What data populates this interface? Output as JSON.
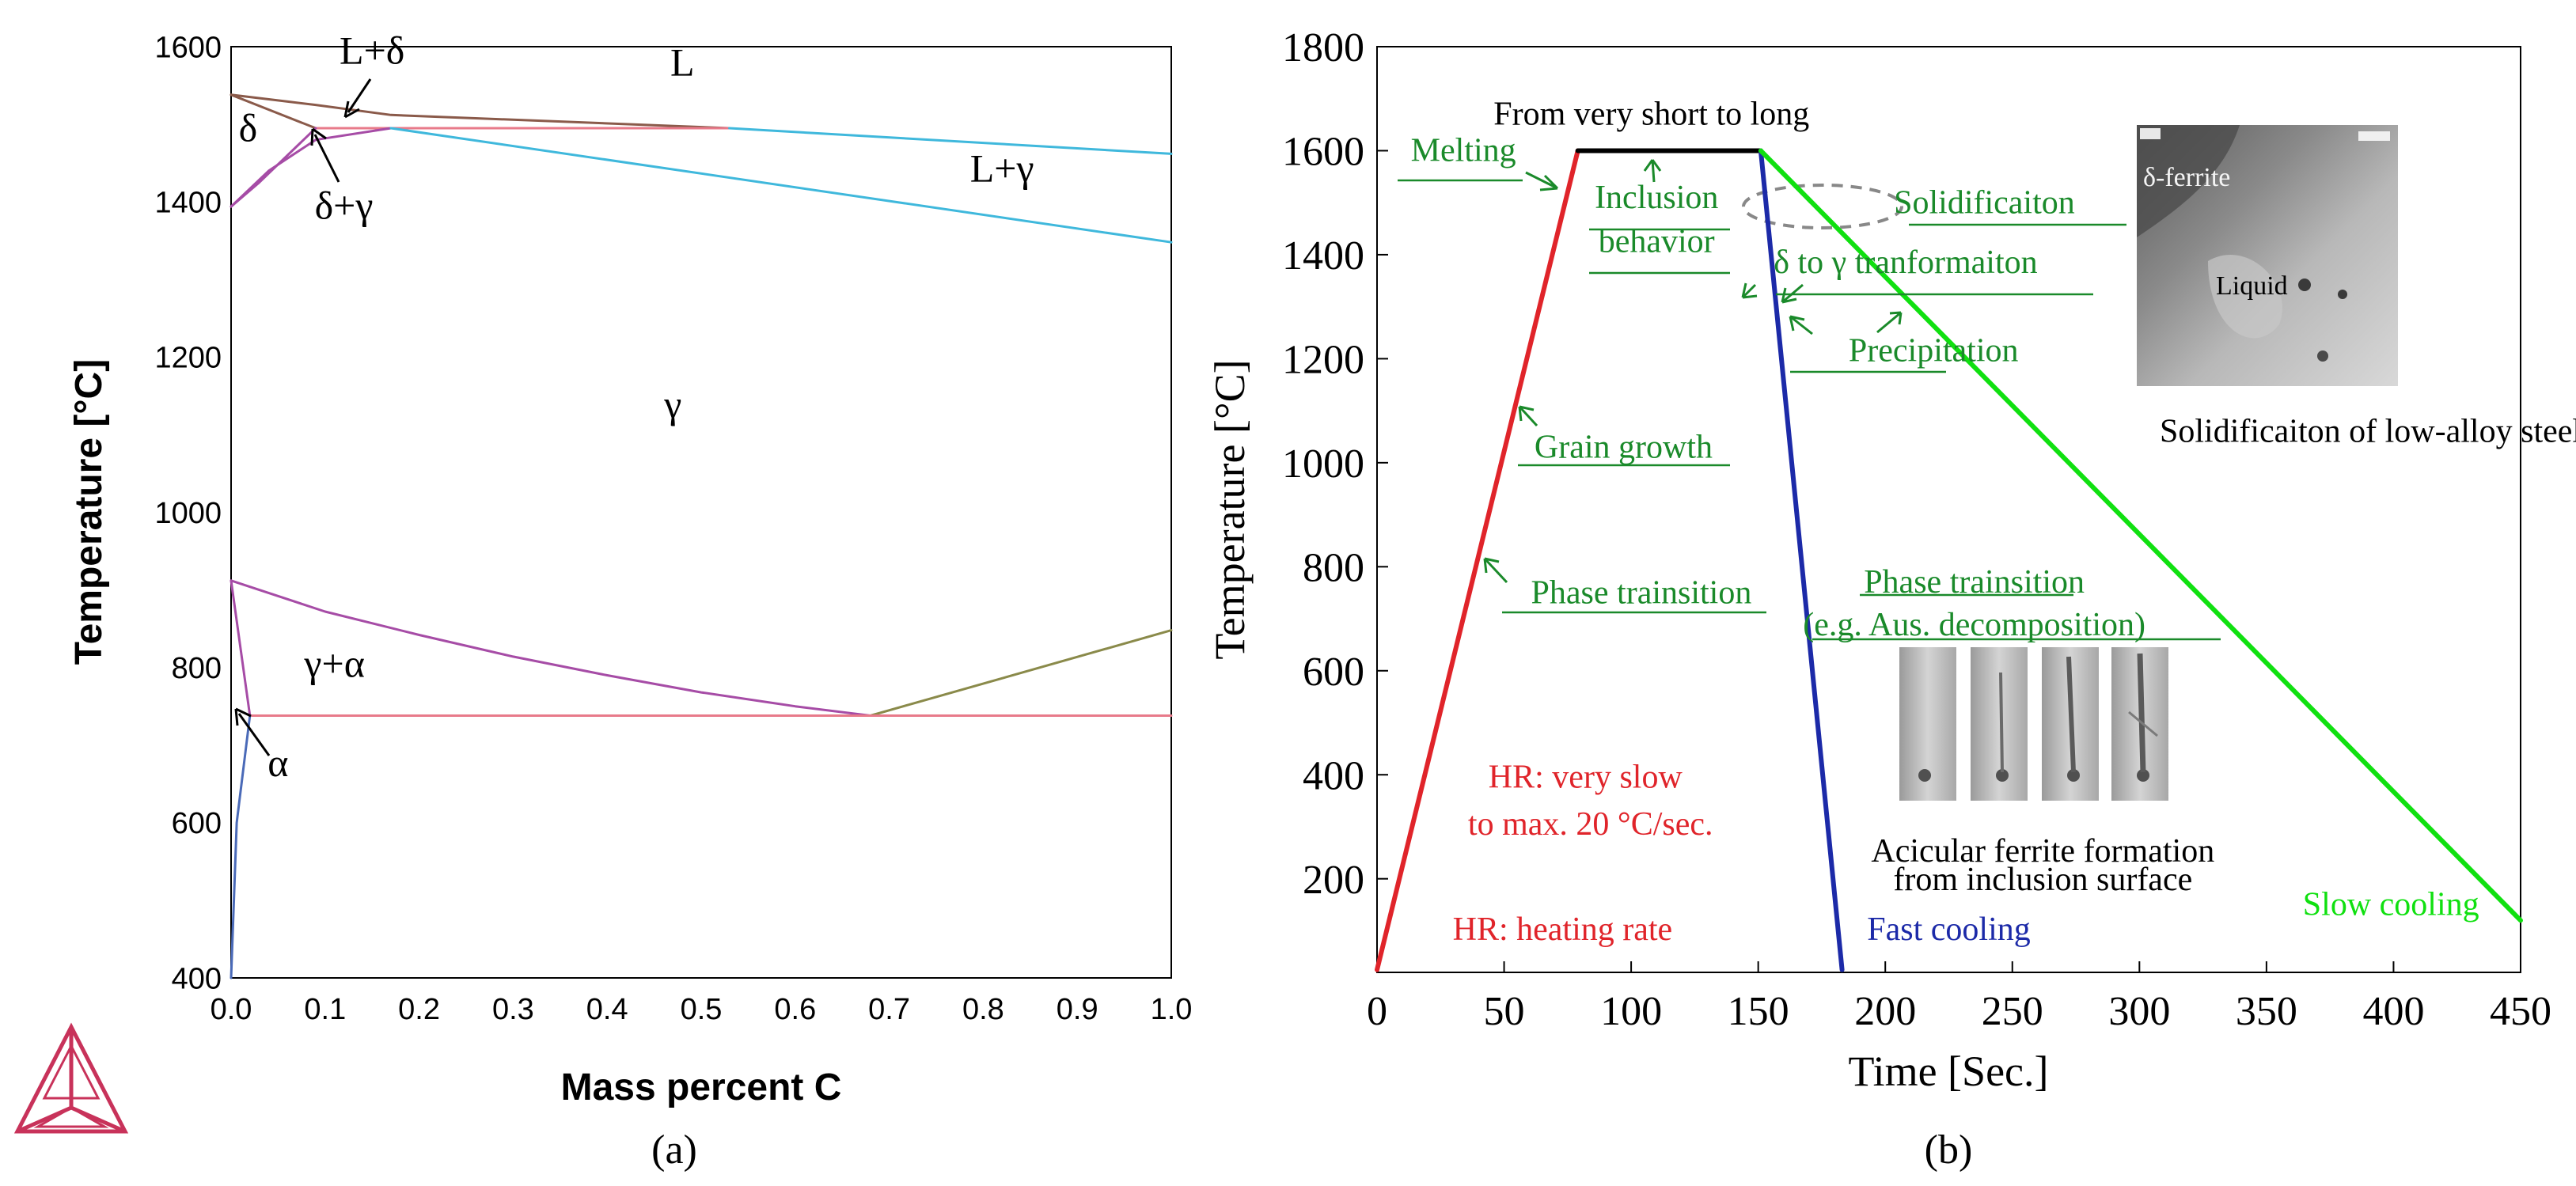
{
  "chart_data": [
    {
      "type": "line",
      "panel_label": "(a)",
      "title": "",
      "xlabel": "Mass percent C",
      "ylabel": "Temperature [°C]",
      "xlim": [
        0,
        1
      ],
      "ylim": [
        400,
        1600
      ],
      "x_ticks": [
        0,
        0.1,
        0.2,
        0.3,
        0.4,
        0.5,
        0.6,
        0.7,
        0.8,
        0.9,
        1
      ],
      "x_tick_labels": [
        "0.0",
        "0.1",
        "0.2",
        "0.3",
        "0.4",
        "0.5",
        "0.6",
        "0.7",
        "0.8",
        "0.9",
        "1.0"
      ],
      "y_ticks": [
        400,
        600,
        800,
        1000,
        1200,
        1400,
        1600
      ],
      "y_tick_labels": [
        "400",
        "600",
        "800",
        "1000",
        "1200",
        "1400",
        "1600"
      ],
      "series": [
        {
          "name": "liquidus-delta",
          "color": "#8a5a4a",
          "points": [
            [
              0,
              1538
            ],
            [
              0.09,
              1525
            ],
            [
              0.17,
              1512
            ],
            [
              0.53,
              1495
            ]
          ]
        },
        {
          "name": "solidus-delta",
          "color": "#8a5a4a",
          "points": [
            [
              0,
              1538
            ],
            [
              0.09,
              1495
            ]
          ]
        },
        {
          "name": "peritectic-line",
          "color": "#e87a8a",
          "points": [
            [
              0.09,
              1495
            ],
            [
              0.53,
              1495
            ]
          ]
        },
        {
          "name": "delta-gamma-upper",
          "color": "#a64ca6",
          "points": [
            [
              0,
              1394
            ],
            [
              0.04,
              1440
            ],
            [
              0.09,
              1480
            ],
            [
              0.17,
              1495
            ]
          ]
        },
        {
          "name": "delta-gamma-lower",
          "color": "#a64ca6",
          "points": [
            [
              0,
              1394
            ],
            [
              0.03,
              1425
            ],
            [
              0.09,
              1495
            ]
          ]
        },
        {
          "name": "liquidus-gamma",
          "color": "#3fb8dc",
          "points": [
            [
              0.53,
              1495
            ],
            [
              1.0,
              1462
            ]
          ]
        },
        {
          "name": "solidus-gamma",
          "color": "#3fb8dc",
          "points": [
            [
              0.17,
              1495
            ],
            [
              1.0,
              1348
            ]
          ]
        },
        {
          "name": "a3-line",
          "color": "#a64ca6",
          "points": [
            [
              0,
              912
            ],
            [
              0.1,
              872
            ],
            [
              0.2,
              842
            ],
            [
              0.3,
              814
            ],
            [
              0.4,
              790
            ],
            [
              0.5,
              768
            ],
            [
              0.6,
              750
            ],
            [
              0.68,
              738
            ]
          ]
        },
        {
          "name": "acm-line",
          "color": "#8a8a4a",
          "points": [
            [
              0.68,
              738
            ],
            [
              1.0,
              848
            ]
          ]
        },
        {
          "name": "eutectoid-line",
          "color": "#e87a8a",
          "points": [
            [
              0.02,
              738
            ],
            [
              1.0,
              738
            ]
          ]
        },
        {
          "name": "alpha-gamma-boundary",
          "color": "#a64ca6",
          "points": [
            [
              0,
              912
            ],
            [
              0.02,
              738
            ]
          ]
        },
        {
          "name": "alpha-solvus",
          "color": "#4a6ab8",
          "points": [
            [
              0,
              400
            ],
            [
              0.006,
              600
            ],
            [
              0.02,
              738
            ]
          ]
        }
      ],
      "annotations": [
        {
          "text": "L+δ",
          "x": 0.15,
          "y": 1578
        },
        {
          "text": "L",
          "x": 0.48,
          "y": 1563
        },
        {
          "text": "δ",
          "x": 0.018,
          "y": 1478
        },
        {
          "text": "L+γ",
          "x": 0.82,
          "y": 1426
        },
        {
          "text": "δ+γ",
          "x": 0.12,
          "y": 1378
        },
        {
          "text": "γ",
          "x": 0.47,
          "y": 1122
        },
        {
          "text": "γ+α",
          "x": 0.11,
          "y": 788
        },
        {
          "text": "α",
          "x": 0.05,
          "y": 660
        }
      ]
    },
    {
      "type": "line",
      "panel_label": "(b)",
      "title": "",
      "xlabel": "Time [Sec.]",
      "ylabel": "Temperature [°C]",
      "xlim": [
        0,
        450
      ],
      "ylim": [
        20,
        1800
      ],
      "x_ticks": [
        0,
        50,
        100,
        150,
        200,
        250,
        300,
        350,
        400,
        450
      ],
      "x_tick_labels": [
        "0",
        "50",
        "100",
        "150",
        "200",
        "250",
        "300",
        "350",
        "400",
        "450"
      ],
      "y_ticks": [
        200,
        400,
        600,
        800,
        1000,
        1200,
        1400,
        1600,
        1800
      ],
      "y_tick_labels": [
        "200",
        "400",
        "600",
        "800",
        "1000",
        "1200",
        "1400",
        "1600",
        "1800"
      ],
      "series": [
        {
          "name": "heating",
          "color": "#e0242a",
          "points": [
            [
              0,
              25
            ],
            [
              79,
              1600
            ]
          ]
        },
        {
          "name": "holding",
          "color": "#000000",
          "points": [
            [
              79,
              1600
            ],
            [
              151,
              1600
            ]
          ]
        },
        {
          "name": "fast-cooling",
          "color": "#1c2aa8",
          "points": [
            [
              151,
              1600
            ],
            [
              183,
              25
            ]
          ]
        },
        {
          "name": "slow-cooling",
          "color": "#10e010",
          "points": [
            [
              151,
              1600
            ],
            [
              450,
              120
            ]
          ]
        }
      ],
      "annotations": [
        {
          "text": "From very short to long",
          "x": 108,
          "y": 1650,
          "color": "#000000"
        },
        {
          "text": "Melting",
          "x": 34,
          "y": 1580,
          "color": "#1a8a2a"
        },
        {
          "text": "Inclusion",
          "x": 110,
          "y": 1490,
          "color": "#1a8a2a"
        },
        {
          "text": "behavior",
          "x": 110,
          "y": 1405,
          "color": "#1a8a2a"
        },
        {
          "text": "Solidificaiton",
          "x": 239,
          "y": 1480,
          "color": "#1a8a2a"
        },
        {
          "text": "δ to γ tranformaiton",
          "x": 208,
          "y": 1365,
          "color": "#1a8a2a"
        },
        {
          "text": "Precipitation",
          "x": 219,
          "y": 1195,
          "color": "#1a8a2a"
        },
        {
          "text": "Grain growth",
          "x": 97,
          "y": 1010,
          "color": "#1a8a2a"
        },
        {
          "text": "Phase trainsition",
          "x": 104,
          "y": 730,
          "color": "#1a8a2a"
        },
        {
          "text": "Phase trainsition",
          "x": 235,
          "y": 750,
          "color": "#1a8a2a"
        },
        {
          "text": "(e.g. Aus. decomposition)",
          "x": 235,
          "y": 668,
          "color": "#1a8a2a"
        },
        {
          "text": "HR: very slow",
          "x": 82,
          "y": 375,
          "color": "#e0242a"
        },
        {
          "text": "to max. 20 °C/sec.",
          "x": 84,
          "y": 285,
          "color": "#e0242a"
        },
        {
          "text": "HR: heating rate",
          "x": 73,
          "y": 82,
          "color": "#e0242a"
        },
        {
          "text": "Fast cooling",
          "x": 225,
          "y": 82,
          "color": "#1c2aa8"
        },
        {
          "text": "Slow cooling",
          "x": 399,
          "y": 130,
          "color": "#10e010"
        },
        {
          "text": "Acicular ferrite formation",
          "x": 262,
          "y": 233,
          "color": "#000000"
        },
        {
          "text": "from inclusion surface",
          "x": 262,
          "y": 178,
          "color": "#000000"
        },
        {
          "text": "Solidificaiton of low-alloy steel",
          "x": 391,
          "y": 1040,
          "color": "#000000"
        }
      ],
      "inset_labels": {
        "delta_ferrite": "δ-ferrite",
        "liquid": "Liquid"
      }
    }
  ]
}
